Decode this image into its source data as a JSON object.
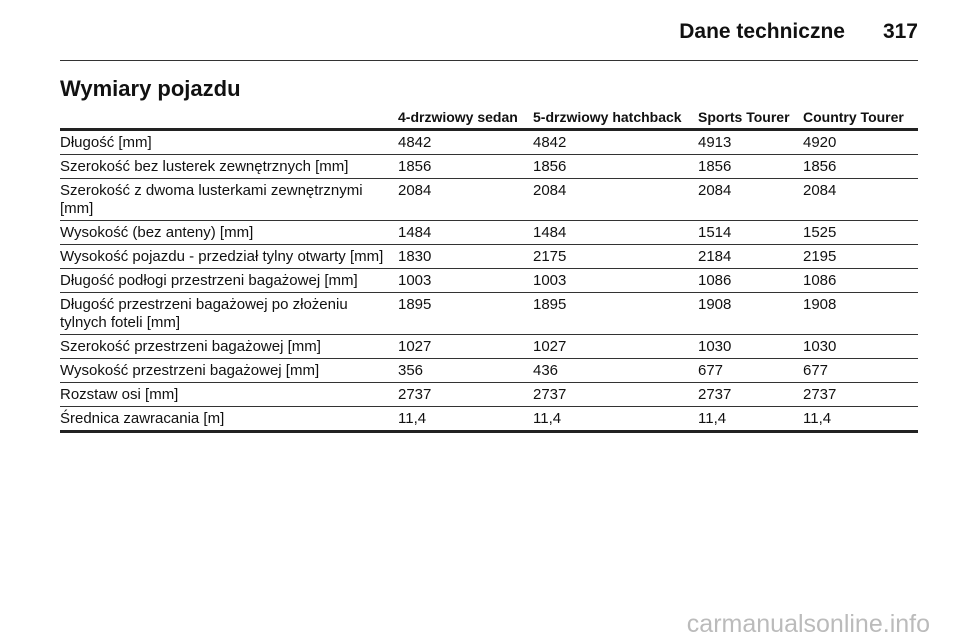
{
  "header": {
    "section": "Dane techniczne",
    "page_number": "317"
  },
  "title": "Wymiary pojazdu",
  "table": {
    "columns": [
      "",
      "4-drzwiowy sedan",
      "5-drzwiowy hatchback",
      "Sports Tourer",
      "Country Tourer"
    ],
    "rows": [
      [
        "Długość [mm]",
        4842,
        4842,
        4913,
        4920
      ],
      [
        "Szerokość bez lusterek zewnętrznych [mm]",
        1856,
        1856,
        1856,
        1856
      ],
      [
        "Szerokość z dwoma lusterkami zewnętrznymi [mm]",
        2084,
        2084,
        2084,
        2084
      ],
      [
        "Wysokość (bez anteny) [mm]",
        1484,
        1484,
        1514,
        1525
      ],
      [
        "Wysokość pojazdu - przedział tylny otwarty [mm]",
        1830,
        2175,
        2184,
        2195
      ],
      [
        "Długość podłogi przestrzeni bagażowej [mm]",
        1003,
        1003,
        1086,
        1086
      ],
      [
        "Długość przestrzeni bagażowej po złożeniu tylnych foteli [mm]",
        1895,
        1895,
        1908,
        1908
      ],
      [
        "Szerokość przestrzeni bagażowej [mm]",
        1027,
        1027,
        1030,
        1030
      ],
      [
        "Wysokość przestrzeni bagażowej [mm]",
        356,
        436,
        677,
        677
      ],
      [
        "Rozstaw osi [mm]",
        2737,
        2737,
        2737,
        2737
      ],
      [
        "Średnica zawracania [m]",
        "11,4",
        "11,4",
        "11,4",
        "11,4"
      ]
    ]
  },
  "watermark": "carmanualsonline.info"
}
